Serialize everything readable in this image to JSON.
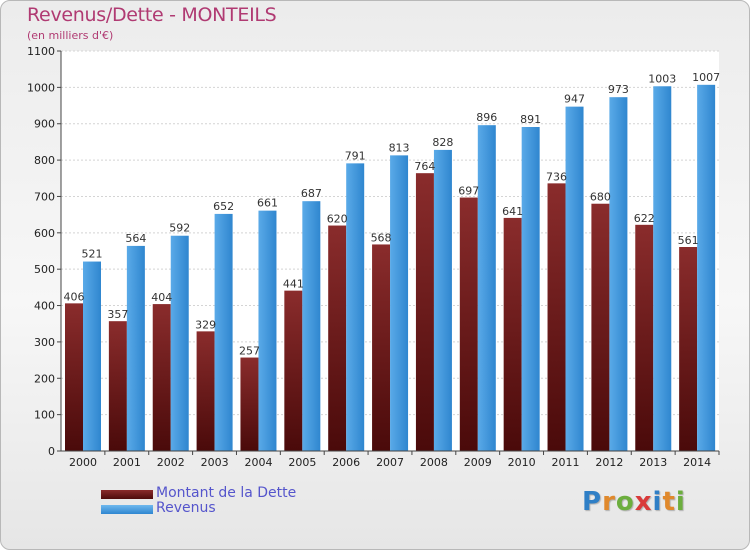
{
  "chart_data": {
    "type": "bar",
    "title": "Revenus/Dette - MONTEILS",
    "subtitle": "(en milliers d'€)",
    "categories": [
      "2000",
      "2001",
      "2002",
      "2003",
      "2004",
      "2005",
      "2006",
      "2007",
      "2008",
      "2009",
      "2010",
      "2011",
      "2012",
      "2013",
      "2014"
    ],
    "series": [
      {
        "name": "Montant de la Dette",
        "color": "#6e1e1e",
        "values": [
          406,
          357,
          404,
          329,
          257,
          441,
          620,
          568,
          764,
          697,
          641,
          736,
          680,
          622,
          561
        ]
      },
      {
        "name": "Revenus",
        "color": "#3f97dd",
        "values": [
          521,
          564,
          592,
          652,
          661,
          687,
          791,
          813,
          828,
          896,
          891,
          947,
          973,
          1003,
          1007
        ]
      }
    ],
    "ylim": [
      0,
      1100
    ],
    "yticks": [
      0,
      100,
      200,
      300,
      400,
      500,
      600,
      700,
      800,
      900,
      1000,
      1100
    ],
    "xlabel": "",
    "ylabel": "",
    "grid": true,
    "legend": "bottom-left"
  },
  "brand": {
    "letters": [
      {
        "ch": "P",
        "color": "#2f7fc6"
      },
      {
        "ch": "r",
        "color": "#e0892c"
      },
      {
        "ch": "o",
        "color": "#6cae3e"
      },
      {
        "ch": "x",
        "color": "#d93a3a"
      },
      {
        "ch": "i",
        "color": "#2f7fc6"
      },
      {
        "ch": "t",
        "color": "#e0892c"
      },
      {
        "ch": "i",
        "color": "#6cae3e"
      }
    ]
  }
}
